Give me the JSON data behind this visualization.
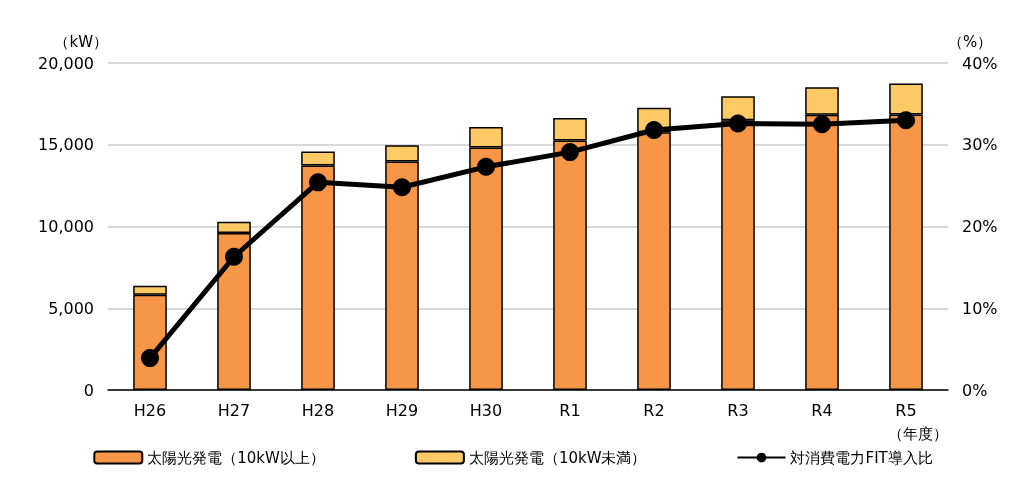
{
  "chart_data": {
    "type": "bar",
    "stacked": true,
    "categories": [
      "H26",
      "H27",
      "H28",
      "H29",
      "H30",
      "R1",
      "R2",
      "R3",
      "R4",
      "R5"
    ],
    "series": [
      {
        "name": "太陽光発電（10kW以上）",
        "color": "#f79646",
        "values": [
          5830,
          9610,
          13730,
          13980,
          14830,
          15260,
          15770,
          16500,
          16830,
          16850
        ]
      },
      {
        "name": "太陽光発電（10kW未満）",
        "color": "#ffca65",
        "values": [
          540,
          680,
          850,
          990,
          1250,
          1380,
          1490,
          1460,
          1690,
          1890
        ]
      },
      {
        "name": "対消費電力FIT導入比",
        "type": "line",
        "axis": "y2",
        "color": "#000000",
        "marker": "circle",
        "values": [
          3.9,
          16.3,
          25.4,
          24.8,
          27.3,
          29.1,
          31.8,
          32.6,
          32.5,
          33.0
        ]
      }
    ],
    "ylabel": "（kW）",
    "y2label": "（%）",
    "xlabel": "（年度）",
    "ylim": [
      0,
      20000
    ],
    "yticks": [
      {
        "value": 0,
        "label": "0"
      },
      {
        "value": 5000,
        "label": "5,000"
      },
      {
        "value": 10000,
        "label": "10,000"
      },
      {
        "value": 15000,
        "label": "15,000"
      },
      {
        "value": 20000,
        "label": "20,000"
      }
    ],
    "y2lim": [
      0,
      40
    ],
    "y2ticks": [
      {
        "value": 0,
        "label": "0%"
      },
      {
        "value": 10,
        "label": "10%"
      },
      {
        "value": 20,
        "label": "20%"
      },
      {
        "value": 30,
        "label": "30%"
      },
      {
        "value": 40,
        "label": "40%"
      }
    ],
    "grid": "y",
    "legend": "bottom"
  }
}
